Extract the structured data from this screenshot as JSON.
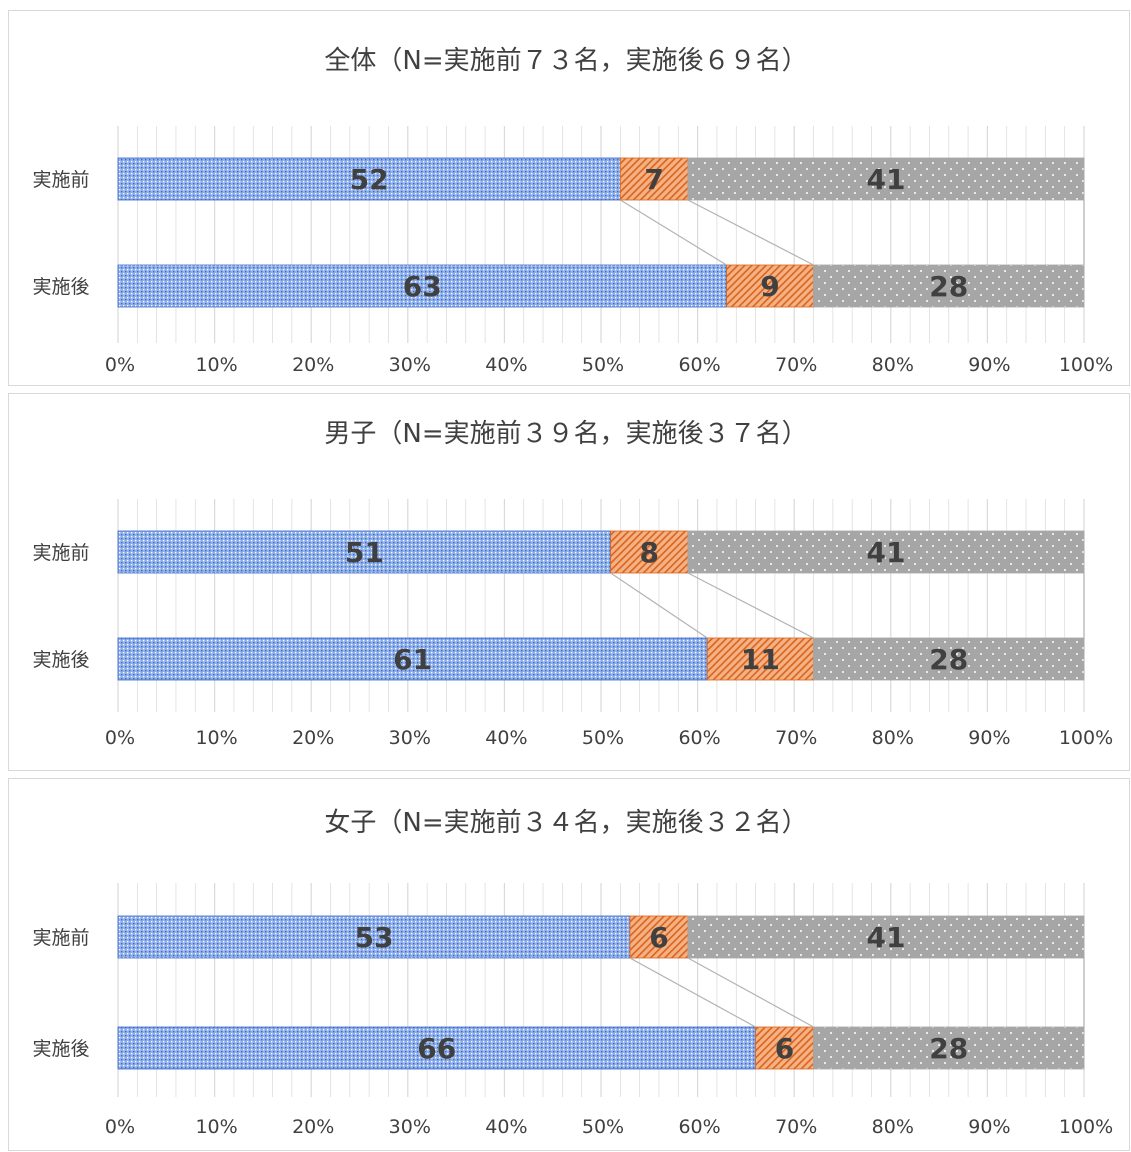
{
  "colors": {
    "series1": "#8fb0e8",
    "series1_dot": "#3a66c8",
    "series2": "#f4b183",
    "series2_hatch": "#d9641e",
    "series3": "#a6a6a6",
    "series3_dot": "#ffffff",
    "grid": "#d9d9d9",
    "connector": "#b3b3b3",
    "label": "#404040"
  },
  "chart_data": [
    {
      "type": "bar",
      "orientation": "horizontal",
      "stacked": "percent",
      "title": "全体（N=実施前７３名，実施後６９名）",
      "categories": [
        "実施前",
        "実施後"
      ],
      "series": [
        {
          "values": [
            52,
            63
          ]
        },
        {
          "values": [
            7,
            9
          ]
        },
        {
          "values": [
            41,
            28
          ]
        }
      ],
      "xlim": [
        0,
        100
      ],
      "xticks": [
        "0%",
        "10%",
        "20%",
        "30%",
        "40%",
        "50%",
        "60%",
        "70%",
        "80%",
        "90%",
        "100%"
      ],
      "grid": true,
      "legend": "none"
    },
    {
      "type": "bar",
      "orientation": "horizontal",
      "stacked": "percent",
      "title": "男子（N=実施前３９名，実施後３７名）",
      "categories": [
        "実施前",
        "実施後"
      ],
      "series": [
        {
          "values": [
            51,
            61
          ]
        },
        {
          "values": [
            8,
            11
          ]
        },
        {
          "values": [
            41,
            28
          ]
        }
      ],
      "xlim": [
        0,
        100
      ],
      "xticks": [
        "0%",
        "10%",
        "20%",
        "30%",
        "40%",
        "50%",
        "60%",
        "70%",
        "80%",
        "90%",
        "100%"
      ],
      "grid": true,
      "legend": "none"
    },
    {
      "type": "bar",
      "orientation": "horizontal",
      "stacked": "percent",
      "title": "女子（N=実施前３４名，実施後３２名）",
      "categories": [
        "実施前",
        "実施後"
      ],
      "series": [
        {
          "values": [
            53,
            66
          ]
        },
        {
          "values": [
            6,
            6
          ]
        },
        {
          "values": [
            41,
            28
          ]
        }
      ],
      "xlim": [
        0,
        100
      ],
      "xticks": [
        "0%",
        "10%",
        "20%",
        "30%",
        "40%",
        "50%",
        "60%",
        "70%",
        "80%",
        "90%",
        "100%"
      ],
      "grid": true,
      "legend": "none"
    }
  ]
}
